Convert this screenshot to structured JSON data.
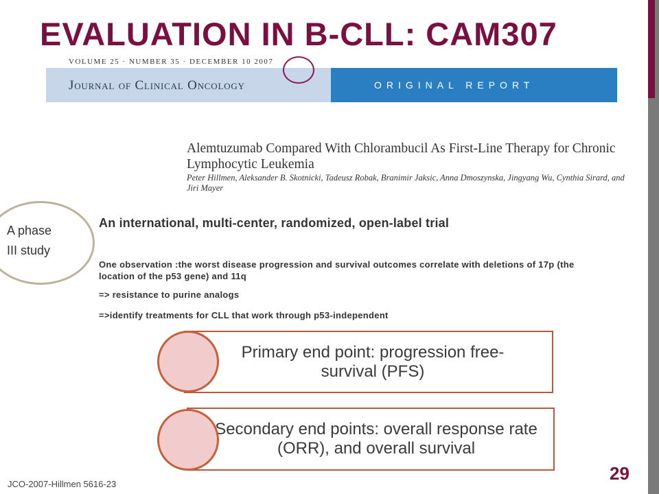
{
  "slide": {
    "title": "EVALUATION IN B-CLL: CAM307",
    "page_number": "29",
    "footer": "JCO-2007-Hillmen 5616-23"
  },
  "journal": {
    "meta": "VOLUME 25 · NUMBER 35 · DECEMBER 10 2007",
    "name": "Journal of Clinical Oncology",
    "report_label": "ORIGINAL REPORT"
  },
  "paper": {
    "title": "Alemtuzumab Compared With Chlorambucil As First-Line Therapy for Chronic Lymphocytic Leukemia",
    "authors": "Peter Hillmen, Aleksander B. Skotnicki, Tadeusz Robak, Branimir Jaksic, Anna Dmoszynska, Jingyang Wu, Cynthia Sirard, and Jiri Mayer"
  },
  "study": {
    "phase": "A phase\nIII study",
    "trial": "An international, multi-center, randomized, open-label trial",
    "observation": "One observation :the worst disease progression and survival outcomes correlate with deletions of 17p (the location of the p53 gene) and 11q",
    "resistance": "=> resistance to purine analogs",
    "identify": "=>identify treatments for CLL that work through p53-independent"
  },
  "endpoints": {
    "primary": "Primary end point: progression free-survival (PFS)",
    "secondary": "Secondary end points: overall response rate (ORR), and overall survival"
  },
  "colors": {
    "title": "#7a1040",
    "journal_blue": "#2a7fc3",
    "journal_light": "#c7d6e8",
    "endpoint_border": "#b85a3a",
    "endpoint_circle": "#f2cccc"
  }
}
